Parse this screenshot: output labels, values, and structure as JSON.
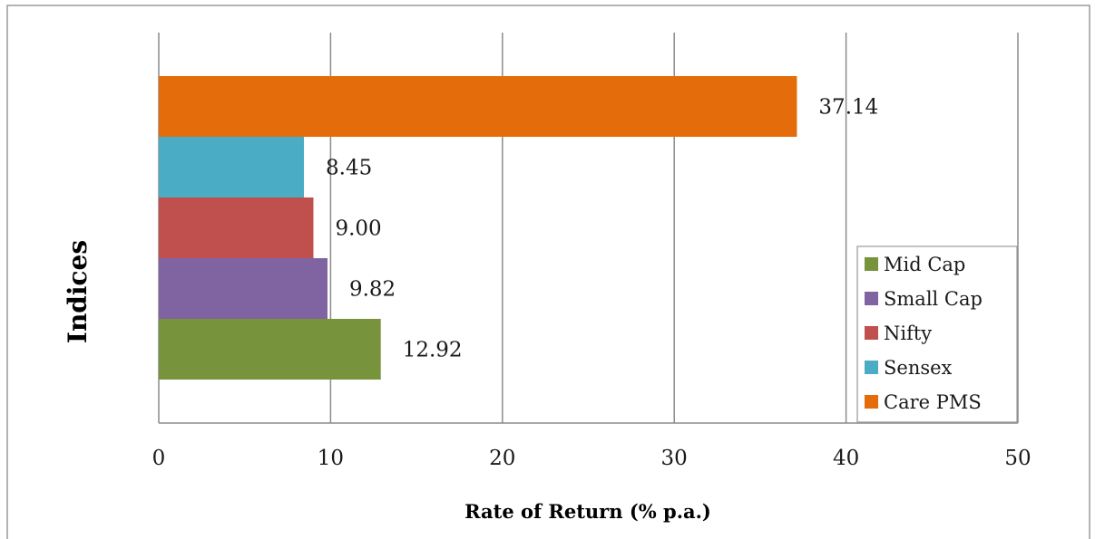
{
  "chart_data": {
    "type": "bar",
    "orientation": "horizontal",
    "xlabel": "Rate of Return (% p.a.)",
    "ylabel": "Indices",
    "xlim": [
      0,
      50
    ],
    "xticks": [
      "0",
      "10",
      "20",
      "30",
      "40",
      "50"
    ],
    "grid": true,
    "legend_position": "bottom-right",
    "series": [
      {
        "name": "Mid Cap",
        "value": 12.92,
        "label": "12.92",
        "color": "#77933c"
      },
      {
        "name": "Small Cap",
        "value": 9.82,
        "label": "9.82",
        "color": "#8064a2"
      },
      {
        "name": "Nifty",
        "value": 9.0,
        "label": "9.00",
        "color": "#c0504d"
      },
      {
        "name": "Sensex",
        "value": 8.45,
        "label": "8.45",
        "color": "#4bacc6"
      },
      {
        "name": "Care PMS",
        "value": 37.14,
        "label": "37.14",
        "color": "#e46c0a"
      }
    ]
  }
}
